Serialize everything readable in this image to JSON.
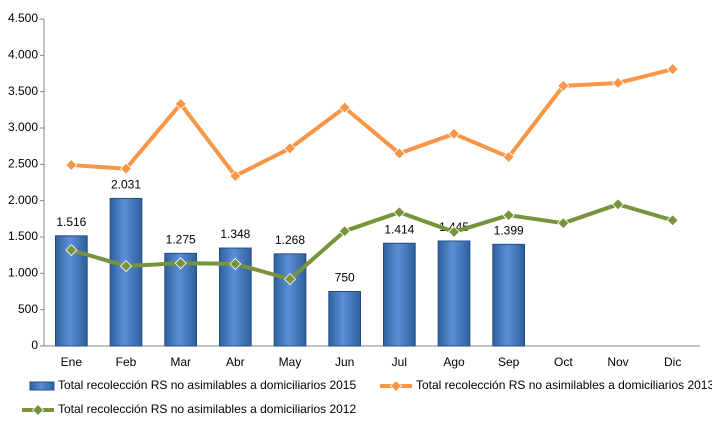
{
  "chart_data": {
    "type": "bar",
    "categories": [
      "Ene",
      "Feb",
      "Mar",
      "Abr",
      "May",
      "Jun",
      "Jul",
      "Ago",
      "Sep",
      "Oct",
      "Nov",
      "Dic"
    ],
    "ylim": [
      0,
      4500
    ],
    "yticks": [
      0,
      500,
      {
        "value": 1000,
        "label": "1.000"
      },
      {
        "value": 1500,
        "label": "1.500"
      },
      {
        "value": 2000,
        "label": "2.000"
      },
      {
        "value": 2500,
        "label": "2.500"
      },
      {
        "value": 3000,
        "label": "3.000"
      },
      {
        "value": 3500,
        "label": "3.500"
      },
      {
        "value": 4000,
        "label": "4.000"
      },
      {
        "value": 4500,
        "label": "4.500"
      }
    ],
    "grid": false,
    "series": [
      {
        "name": "Total recolección RS no asimilables a domiciliarios 2015",
        "type": "bar",
        "color": "#4a7ebb",
        "values": [
          1516,
          2031,
          1275,
          1348,
          1268,
          750,
          1414,
          1445,
          1399,
          null,
          null,
          null
        ],
        "value_labels": [
          "1.516",
          "2.031",
          "1.275",
          "1.348",
          "1.268",
          "750",
          "1.414",
          "1.445",
          "1.399",
          null,
          null,
          null
        ]
      },
      {
        "name": "Total recolección RS no asimilables a domiciliarios 2013",
        "type": "line",
        "color": "#f79646",
        "values": [
          2490,
          2440,
          3330,
          2340,
          2720,
          3280,
          2650,
          2920,
          2600,
          3580,
          3620,
          3810
        ]
      },
      {
        "name": "Total recolección RS no asimilables a domiciliarios 2012",
        "type": "line",
        "color": "#77933c",
        "values": [
          1320,
          1100,
          1140,
          1130,
          920,
          1580,
          1840,
          1570,
          1800,
          1690,
          1950,
          1730
        ]
      }
    ]
  }
}
